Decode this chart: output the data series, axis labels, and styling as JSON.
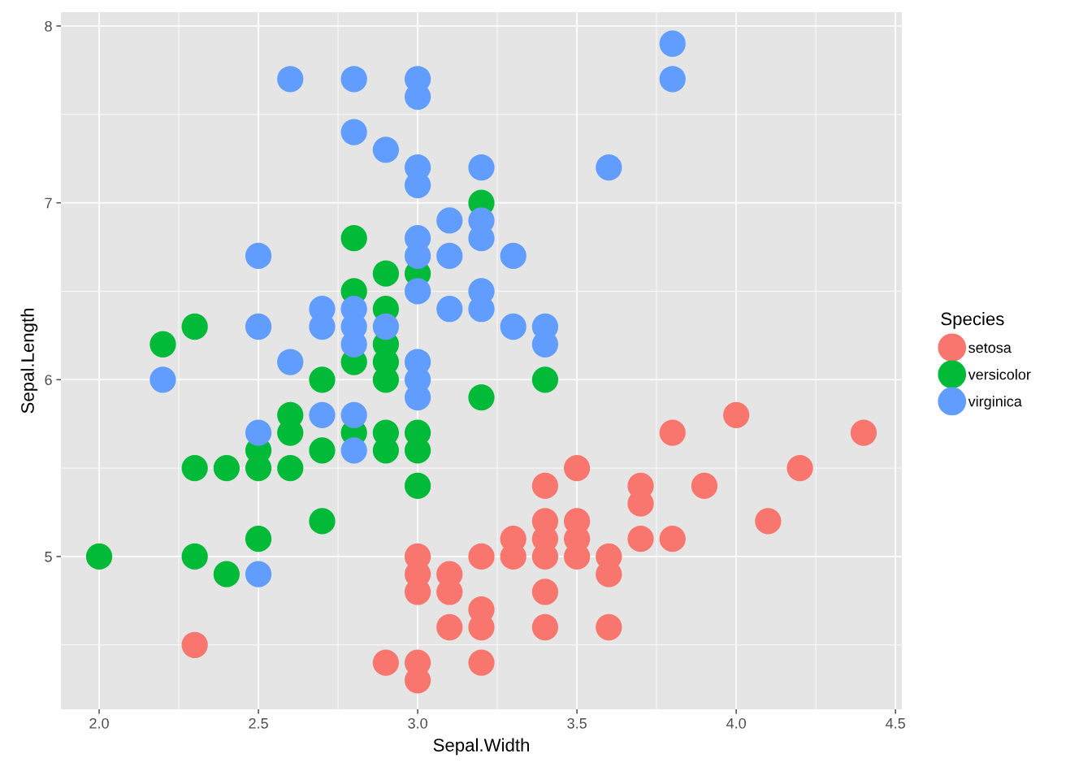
{
  "chart_data": {
    "type": "scatter",
    "xlabel": "Sepal.Width",
    "ylabel": "Sepal.Length",
    "legend_title": "Species",
    "legend": "right",
    "grid": true,
    "marker": "circle",
    "xlim": [
      1.88,
      4.52
    ],
    "xticks": [
      {
        "value": 2.0,
        "label": "2.0"
      },
      2.5,
      {
        "value": 3.0,
        "label": "3.0"
      },
      3.5,
      {
        "value": 4.0,
        "label": "4.0"
      },
      4.5
    ],
    "ylim": [
      4.136,
      8.078
    ],
    "yticks": [
      5,
      6,
      7,
      8
    ],
    "series": [
      {
        "name": "setosa",
        "color": "#f8766d",
        "x": [
          3.5,
          3.0,
          3.2,
          3.1,
          3.6,
          3.9,
          3.4,
          3.4,
          2.9,
          3.1,
          3.7,
          3.4,
          3.0,
          3.0,
          4.0,
          4.4,
          3.8,
          3.8,
          3.4,
          3.7,
          3.6,
          3.3,
          3.0,
          3.5,
          3.4,
          3.1,
          4.1,
          4.2,
          3.2,
          3.5,
          3.6,
          3.0,
          3.4,
          3.5,
          2.3,
          3.2,
          3.2,
          3.7,
          3.3
        ],
        "values": [
          5.1,
          4.9,
          4.7,
          4.6,
          5.0,
          5.4,
          4.6,
          5.0,
          4.4,
          4.9,
          5.4,
          4.8,
          4.8,
          4.3,
          5.8,
          5.7,
          5.7,
          5.1,
          5.4,
          5.1,
          4.6,
          5.1,
          5.0,
          5.2,
          5.2,
          4.8,
          5.2,
          5.5,
          5.0,
          5.5,
          4.9,
          4.4,
          5.1,
          5.0,
          4.5,
          4.4,
          4.6,
          5.3,
          5.0
        ]
      },
      {
        "name": "versicolor",
        "color": "#00ba38",
        "x": [
          3.2,
          2.3,
          2.8,
          2.8,
          2.4,
          2.9,
          2.7,
          2.0,
          2.9,
          2.9,
          3.0,
          2.2,
          2.5,
          3.2,
          2.8,
          2.9,
          3.0,
          2.8,
          2.9,
          2.6,
          2.4,
          2.7,
          3.0,
          3.4,
          2.3,
          2.5,
          2.6,
          2.6,
          2.3,
          2.7,
          3.0,
          2.9,
          2.9,
          2.5
        ],
        "values": [
          7.0,
          5.5,
          6.5,
          5.7,
          4.9,
          6.6,
          5.2,
          5.0,
          6.1,
          5.6,
          5.6,
          6.2,
          5.6,
          5.9,
          6.1,
          6.4,
          6.6,
          6.8,
          6.0,
          5.7,
          5.5,
          6.0,
          5.4,
          6.0,
          6.3,
          5.5,
          5.5,
          5.8,
          5.0,
          5.6,
          5.7,
          5.7,
          6.2,
          5.1
        ]
      },
      {
        "name": "virginica",
        "color": "#619cff",
        "x": [
          3.3,
          2.7,
          3.0,
          2.9,
          3.0,
          3.0,
          2.5,
          2.9,
          2.5,
          3.6,
          3.2,
          2.7,
          3.0,
          2.5,
          2.8,
          3.2,
          3.8,
          2.6,
          2.2,
          3.2,
          2.8,
          2.8,
          2.7,
          3.3,
          3.2,
          2.8,
          3.0,
          2.8,
          3.0,
          2.8,
          3.8,
          2.8,
          2.6,
          3.0,
          3.4,
          3.1,
          3.0,
          3.1,
          3.1,
          3.2,
          3.0,
          2.5,
          3.4,
          3.0
        ],
        "values": [
          6.3,
          5.8,
          7.1,
          6.3,
          6.5,
          7.6,
          4.9,
          7.3,
          6.7,
          7.2,
          6.5,
          6.4,
          6.8,
          5.7,
          5.8,
          6.4,
          7.7,
          7.7,
          6.0,
          6.9,
          5.6,
          7.7,
          6.3,
          6.7,
          7.2,
          6.2,
          6.1,
          6.4,
          7.2,
          7.4,
          7.9,
          6.3,
          6.1,
          7.7,
          6.3,
          6.4,
          6.0,
          6.9,
          6.7,
          6.8,
          6.7,
          6.3,
          6.2,
          5.9
        ]
      }
    ]
  }
}
